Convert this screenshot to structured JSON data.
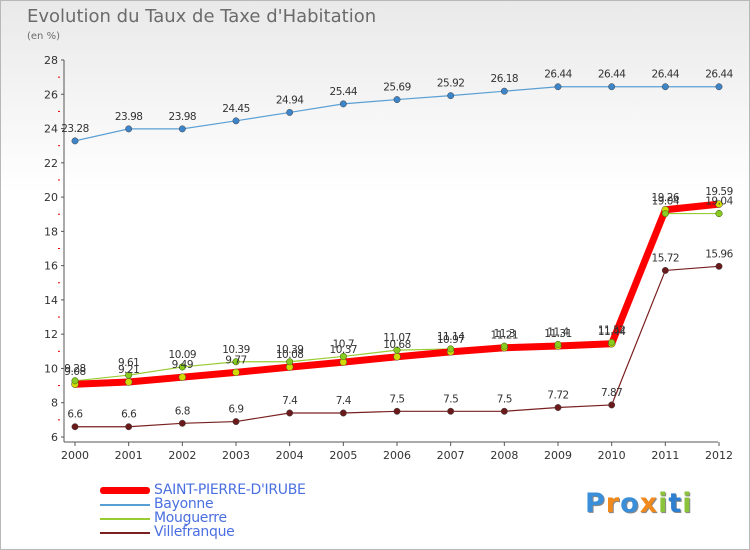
{
  "title": "Evolution du Taux de Taxe d'Habitation",
  "subtitle": "(en %)",
  "brand": {
    "text": "Proxiti",
    "letter_colors": [
      "#3a8fd8",
      "#f08a1c",
      "#3a8fd8",
      "#f08a1c",
      "#8bc43a",
      "#2e7fd0",
      "#8bc43a"
    ]
  },
  "chart_data": {
    "type": "line",
    "title": "Evolution du Taux de Taxe d'Habitation",
    "ylabel": "(en %)",
    "xlabel": "",
    "x": [
      "2000",
      "2001",
      "2002",
      "2003",
      "2004",
      "2005",
      "2006",
      "2007",
      "2008",
      "2009",
      "2010",
      "2011",
      "2012"
    ],
    "ylim": [
      6,
      28
    ],
    "yticks": [
      6,
      8,
      10,
      12,
      14,
      16,
      18,
      20,
      22,
      24,
      26,
      28
    ],
    "grid": false,
    "legend_position": "bottom-left",
    "series": [
      {
        "name": "SAINT-PIERRE-D'IRUBE",
        "color": "#ff0000",
        "marker": "#d2d900",
        "width": 7,
        "values": [
          9.08,
          9.21,
          9.49,
          9.77,
          10.08,
          10.37,
          10.68,
          10.97,
          11.21,
          11.31,
          11.44,
          19.26,
          19.59
        ]
      },
      {
        "name": "Bayonne",
        "color": "#5a9fd4",
        "marker": "#3d85c8",
        "width": 1.2,
        "values": [
          23.28,
          23.98,
          23.98,
          24.45,
          24.94,
          25.44,
          25.69,
          25.92,
          26.18,
          26.44,
          26.44,
          26.44,
          26.44
        ]
      },
      {
        "name": "Mouguerre",
        "color": "#99cc33",
        "marker": "#88cc22",
        "width": 1.2,
        "values": [
          9.28,
          9.61,
          10.09,
          10.39,
          10.39,
          10.7,
          11.07,
          11.14,
          11.3,
          11.4,
          11.52,
          19.04,
          19.04
        ]
      },
      {
        "name": "Villefranque",
        "color": "#7a2020",
        "marker": "#6a1a1a",
        "width": 1.2,
        "values": [
          6.6,
          6.6,
          6.8,
          6.9,
          7.4,
          7.4,
          7.5,
          7.5,
          7.5,
          7.72,
          7.87,
          15.72,
          15.96
        ]
      }
    ],
    "data_labels": [
      {
        "series": "SAINT-PIERRE-D'IRUBE",
        "text": [
          "9.08",
          "9.21",
          "9.49",
          "9.77",
          "10.08",
          "10.37",
          "10.68",
          "10.97",
          "11.21",
          "11.31",
          "11.44",
          "19.26",
          "19.59"
        ]
      },
      {
        "series": "Bayonne",
        "text": [
          "23.28",
          "23.98",
          "23.98",
          "24.45",
          "24.94",
          "25.44",
          "25.69",
          "25.92",
          "26.18",
          "26.44",
          "26.44",
          "26.44",
          "26.44"
        ]
      },
      {
        "series": "Mouguerre",
        "text": [
          "9.28",
          "9.61",
          "10.09",
          "10.39",
          "10.39",
          "10.7",
          "11.07",
          "11.14",
          "11.3",
          "11.4",
          "11.52",
          "19.04",
          "19.04"
        ]
      },
      {
        "series": "Villefranque",
        "text": [
          "6.6",
          "6.6",
          "6.8",
          "6.9",
          "7.4",
          "7.4",
          "7.5",
          "7.5",
          "7.5",
          "7.72",
          "7.87",
          "15.72",
          "15.96"
        ]
      }
    ]
  }
}
